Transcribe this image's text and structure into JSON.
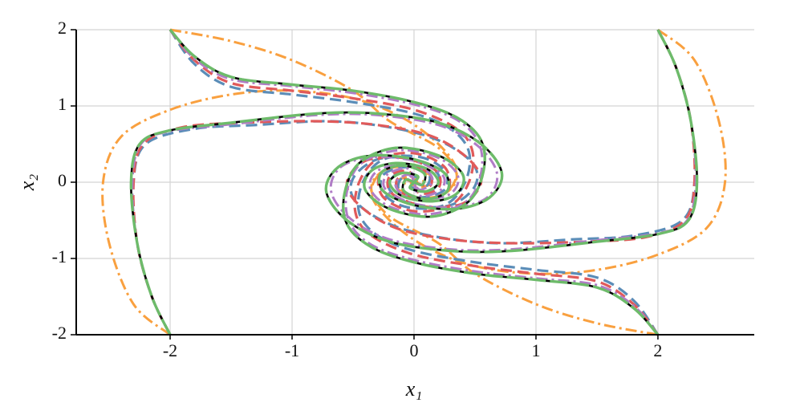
{
  "chart_data": {
    "type": "line",
    "xlabel": "x₁",
    "ylabel": "x₂",
    "xlim": [
      -2.77,
      2.79
    ],
    "ylim": [
      -2,
      2
    ],
    "xticks": [
      -2,
      -1,
      0,
      1,
      2
    ],
    "yticks": [
      -2,
      -1,
      0,
      1,
      2
    ],
    "grid": true,
    "series": [
      {
        "color": "#f9a03f",
        "linestyle": "dashdot",
        "x": [
          -2,
          -1.5,
          -1,
          -0.5,
          -0.2,
          0.2,
          0.35,
          0.25,
          0,
          -0.15,
          0,
          0,
          null,
          2,
          2.3,
          2.5,
          2.55,
          2.4,
          2,
          1.5,
          1,
          0.5,
          0.1,
          -0.2,
          -0.35,
          -0.25,
          0,
          0.15,
          0,
          null,
          -2,
          -2.3,
          -2.5,
          -2.55,
          -2.4,
          -2,
          -1.5,
          -1,
          -0.5,
          -0.1,
          0.2,
          0.35,
          0.25,
          0,
          -0.15,
          0,
          null,
          2,
          1.5,
          1,
          0.5,
          0.2,
          -0.2,
          -0.35,
          -0.25,
          0,
          0.15,
          0,
          0
        ],
        "values": [
          2,
          1.85,
          1.6,
          1.2,
          0.8,
          0.45,
          0.1,
          -0.15,
          -0.2,
          0,
          0.08,
          0,
          null,
          2,
          1.6,
          0.8,
          0,
          -0.6,
          -0.95,
          -1.15,
          -1.2,
          -1.1,
          -0.85,
          -0.5,
          -0.15,
          0.15,
          0.2,
          0.05,
          0,
          null,
          -2,
          -1.6,
          -0.8,
          0,
          0.6,
          0.95,
          1.15,
          1.2,
          1.1,
          0.85,
          0.5,
          0.15,
          -0.15,
          -0.2,
          -0.05,
          0,
          null,
          -2,
          -1.85,
          -1.6,
          -1.2,
          -0.8,
          -0.45,
          -0.1,
          0.15,
          0.2,
          0,
          -0.08,
          0
        ]
      },
      {
        "color": "#5b8db8",
        "linestyle": "dashed",
        "x": [
          -2,
          -1.8,
          -1.5,
          -1,
          -0.5,
          0,
          0.3,
          0.45,
          0.42,
          0.25,
          -0.05,
          -0.25,
          -0.25,
          -0.05,
          0.12,
          0.1,
          0,
          null,
          2,
          2.15,
          2.27,
          2.3,
          2.2,
          1.8,
          1.3,
          0.7,
          0.2,
          -0.2,
          -0.48,
          -0.5,
          -0.3,
          0,
          0.2,
          0.15,
          0,
          0,
          null,
          -2,
          -2.15,
          -2.27,
          -2.3,
          -2.2,
          -1.8,
          -1.3,
          -0.7,
          -0.2,
          0.2,
          0.48,
          0.5,
          0.3,
          0,
          -0.2,
          -0.15,
          0,
          0,
          null,
          2,
          1.8,
          1.5,
          1,
          0.5,
          0,
          -0.3,
          -0.45,
          -0.42,
          -0.25,
          0.05,
          0.25,
          0.25,
          0.05,
          -0.12,
          -0.1,
          0
        ],
        "values": [
          2,
          1.55,
          1.25,
          1.15,
          1.05,
          0.9,
          0.7,
          0.4,
          0,
          -0.3,
          -0.33,
          -0.15,
          0.1,
          0.2,
          0.1,
          -0.05,
          0,
          null,
          2,
          1.5,
          0.8,
          0,
          -0.5,
          -0.7,
          -0.75,
          -0.8,
          -0.72,
          -0.55,
          -0.25,
          0.05,
          0.3,
          0.3,
          0.1,
          -0.1,
          -0.1,
          0,
          null,
          -2,
          -1.5,
          -0.8,
          0,
          0.5,
          0.7,
          0.75,
          0.8,
          0.72,
          0.55,
          0.25,
          -0.05,
          -0.3,
          -0.3,
          -0.1,
          0.1,
          0.1,
          0,
          null,
          -2,
          -1.55,
          -1.25,
          -1.15,
          -1.05,
          -0.9,
          -0.7,
          -0.4,
          0,
          0.3,
          0.33,
          0.15,
          -0.1,
          -0.2,
          -0.1,
          0.05,
          0
        ]
      },
      {
        "color": "#e05a5a",
        "linestyle": "dashed",
        "x": [
          -2,
          -1.8,
          -1.5,
          -1,
          -0.5,
          0,
          0.35,
          0.48,
          0.45,
          0.3,
          0,
          -0.25,
          -0.28,
          -0.1,
          0.12,
          0.13,
          0,
          null,
          2,
          2.15,
          2.27,
          2.3,
          2.22,
          1.9,
          1.4,
          0.8,
          0.3,
          -0.15,
          -0.45,
          -0.55,
          -0.4,
          -0.1,
          0.18,
          0.2,
          0.05,
          0,
          null,
          -2,
          -2.15,
          -2.27,
          -2.3,
          -2.22,
          -1.9,
          -1.4,
          -0.8,
          -0.3,
          0.15,
          0.45,
          0.55,
          0.4,
          0.1,
          -0.18,
          -0.2,
          -0.05,
          0,
          null,
          2,
          1.8,
          1.5,
          1,
          0.5,
          0,
          -0.35,
          -0.48,
          -0.45,
          -0.3,
          0,
          0.25,
          0.28,
          0.1,
          -0.12,
          -0.13,
          0
        ],
        "values": [
          2,
          1.6,
          1.3,
          1.2,
          1.1,
          0.95,
          0.7,
          0.4,
          0,
          -0.3,
          -0.38,
          -0.2,
          0.1,
          0.22,
          0.12,
          -0.05,
          0,
          null,
          2,
          1.5,
          0.8,
          0,
          -0.5,
          -0.72,
          -0.78,
          -0.8,
          -0.75,
          -0.6,
          -0.3,
          0,
          0.28,
          0.32,
          0.15,
          -0.08,
          -0.15,
          0,
          null,
          -2,
          -1.5,
          -0.8,
          0,
          0.5,
          0.72,
          0.78,
          0.8,
          0.75,
          0.6,
          0.3,
          0,
          -0.28,
          -0.32,
          -0.15,
          0.08,
          0.15,
          0,
          null,
          -2,
          -1.6,
          -1.3,
          -1.2,
          -1.1,
          -0.95,
          -0.7,
          -0.4,
          0,
          0.3,
          0.38,
          0.2,
          -0.1,
          -0.22,
          -0.12,
          0.05,
          0
        ]
      },
      {
        "color": "#b07cc6",
        "linestyle": "dashdot",
        "x": [
          -2,
          -1.8,
          -1.5,
          -1,
          -0.5,
          0,
          0.35,
          0.53,
          0.55,
          0.43,
          0.12,
          -0.2,
          -0.36,
          -0.3,
          -0.1,
          0.1,
          0.15,
          0.05,
          0,
          null,
          2,
          2.15,
          2.27,
          2.31,
          2.24,
          2,
          1.5,
          0.8,
          0.3,
          -0.2,
          -0.52,
          -0.68,
          -0.6,
          -0.33,
          0,
          0.23,
          0.22,
          0.05,
          0,
          null,
          -2,
          -2.15,
          -2.27,
          -2.31,
          -2.24,
          -2,
          -1.5,
          -0.8,
          -0.3,
          0.2,
          0.52,
          0.68,
          0.6,
          0.33,
          0,
          -0.23,
          -0.22,
          -0.05,
          0,
          null,
          2,
          1.8,
          1.5,
          1,
          0.5,
          0,
          -0.35,
          -0.53,
          -0.55,
          -0.43,
          -0.12,
          0.2,
          0.36,
          0.3,
          0.1,
          -0.1,
          -0.15,
          -0.05,
          0
        ],
        "values": [
          2,
          1.62,
          1.35,
          1.26,
          1.17,
          1.02,
          0.82,
          0.52,
          0.12,
          -0.25,
          -0.42,
          -0.32,
          -0.08,
          0.15,
          0.22,
          0.15,
          0,
          -0.1,
          0,
          null,
          2,
          1.5,
          0.8,
          0,
          -0.5,
          -0.67,
          -0.76,
          -0.88,
          -0.88,
          -0.75,
          -0.48,
          -0.12,
          0.2,
          0.33,
          0.28,
          0.1,
          -0.1,
          -0.18,
          0,
          null,
          -2,
          -1.5,
          -0.8,
          0,
          0.5,
          0.67,
          0.76,
          0.88,
          0.88,
          0.75,
          0.48,
          0.12,
          -0.2,
          -0.33,
          -0.28,
          -0.1,
          0.1,
          0.18,
          0,
          null,
          -2,
          -1.62,
          -1.35,
          -1.26,
          -1.17,
          -1.02,
          -0.82,
          -0.52,
          -0.12,
          0.25,
          0.42,
          0.32,
          0.08,
          -0.15,
          -0.22,
          -0.15,
          0,
          0.1,
          0
        ]
      },
      {
        "color": "#000000",
        "linestyle": "solid",
        "x": [
          -2,
          -1.8,
          -1.5,
          -1,
          -0.5,
          0,
          0.35,
          0.55,
          0.57,
          0.45,
          0.15,
          -0.2,
          -0.4,
          -0.35,
          -0.15,
          0.1,
          0.2,
          0.1,
          -0.03,
          0,
          null,
          2,
          2.15,
          2.27,
          2.32,
          2.25,
          2,
          1.5,
          0.8,
          0.3,
          -0.2,
          -0.55,
          -0.72,
          -0.62,
          -0.35,
          0,
          0.25,
          0.27,
          0.1,
          -0.08,
          -0.07,
          0,
          null,
          -2,
          -2.15,
          -2.27,
          -2.32,
          -2.25,
          -2,
          -1.5,
          -0.8,
          -0.3,
          0.2,
          0.55,
          0.72,
          0.62,
          0.35,
          0,
          -0.25,
          -0.27,
          -0.1,
          0.08,
          0.07,
          0,
          null,
          2,
          1.8,
          1.5,
          1,
          0.5,
          0,
          -0.35,
          -0.55,
          -0.57,
          -0.45,
          -0.15,
          0.2,
          0.4,
          0.35,
          0.15,
          -0.1,
          -0.2,
          -0.1,
          0.03,
          0
        ],
        "values": [
          2,
          1.65,
          1.38,
          1.28,
          1.2,
          1.05,
          0.85,
          0.55,
          0.15,
          -0.25,
          -0.45,
          -0.35,
          -0.1,
          0.15,
          0.25,
          0.18,
          0,
          -0.12,
          -0.08,
          0,
          null,
          2,
          1.5,
          0.8,
          0,
          -0.5,
          -0.68,
          -0.78,
          -0.9,
          -0.9,
          -0.78,
          -0.5,
          -0.12,
          0.2,
          0.35,
          0.3,
          0.12,
          -0.12,
          -0.22,
          -0.12,
          0.03,
          0,
          null,
          -2,
          -1.5,
          -0.8,
          0,
          0.5,
          0.68,
          0.78,
          0.9,
          0.9,
          0.78,
          0.5,
          0.12,
          -0.2,
          -0.35,
          -0.3,
          -0.12,
          0.12,
          0.22,
          0.12,
          -0.03,
          0,
          null,
          -2,
          -1.65,
          -1.38,
          -1.28,
          -1.2,
          -1.05,
          -0.85,
          -0.55,
          -0.15,
          0.25,
          0.45,
          0.35,
          0.1,
          -0.15,
          -0.25,
          -0.18,
          0,
          0.12,
          0.08,
          0
        ]
      },
      {
        "color": "#6dbb6a",
        "linestyle": "longdash",
        "x": [
          -2,
          -1.8,
          -1.5,
          -1,
          -0.5,
          0,
          0.35,
          0.55,
          0.57,
          0.45,
          0.15,
          -0.2,
          -0.4,
          -0.35,
          -0.15,
          0.1,
          0.2,
          0.1,
          -0.03,
          0,
          null,
          2,
          2.15,
          2.27,
          2.32,
          2.25,
          2,
          1.5,
          0.8,
          0.3,
          -0.2,
          -0.55,
          -0.72,
          -0.62,
          -0.35,
          0,
          0.25,
          0.27,
          0.1,
          -0.08,
          -0.07,
          0,
          null,
          -2,
          -2.15,
          -2.27,
          -2.32,
          -2.25,
          -2,
          -1.5,
          -0.8,
          -0.3,
          0.2,
          0.55,
          0.72,
          0.62,
          0.35,
          0,
          -0.25,
          -0.27,
          -0.1,
          0.08,
          0.07,
          0,
          null,
          2,
          1.8,
          1.5,
          1,
          0.5,
          0,
          -0.35,
          -0.55,
          -0.57,
          -0.45,
          -0.15,
          0.2,
          0.4,
          0.35,
          0.15,
          -0.1,
          -0.2,
          -0.1,
          0.03,
          0
        ],
        "values": [
          2,
          1.65,
          1.38,
          1.28,
          1.2,
          1.05,
          0.85,
          0.55,
          0.15,
          -0.25,
          -0.45,
          -0.35,
          -0.1,
          0.15,
          0.25,
          0.18,
          0,
          -0.12,
          -0.08,
          0,
          null,
          2,
          1.5,
          0.8,
          0,
          -0.5,
          -0.68,
          -0.78,
          -0.9,
          -0.9,
          -0.78,
          -0.5,
          -0.12,
          0.2,
          0.35,
          0.3,
          0.12,
          -0.12,
          -0.22,
          -0.12,
          0.03,
          0,
          null,
          -2,
          -1.5,
          -0.8,
          0,
          0.5,
          0.68,
          0.78,
          0.9,
          0.9,
          0.78,
          0.5,
          0.12,
          -0.2,
          -0.35,
          -0.3,
          -0.12,
          0.12,
          0.22,
          0.12,
          -0.03,
          0,
          null,
          -2,
          -1.65,
          -1.38,
          -1.28,
          -1.2,
          -1.05,
          -0.85,
          -0.55,
          -0.15,
          0.25,
          0.45,
          0.35,
          0.1,
          -0.15,
          -0.25,
          -0.18,
          0,
          0.12,
          0.08,
          0
        ]
      }
    ]
  }
}
